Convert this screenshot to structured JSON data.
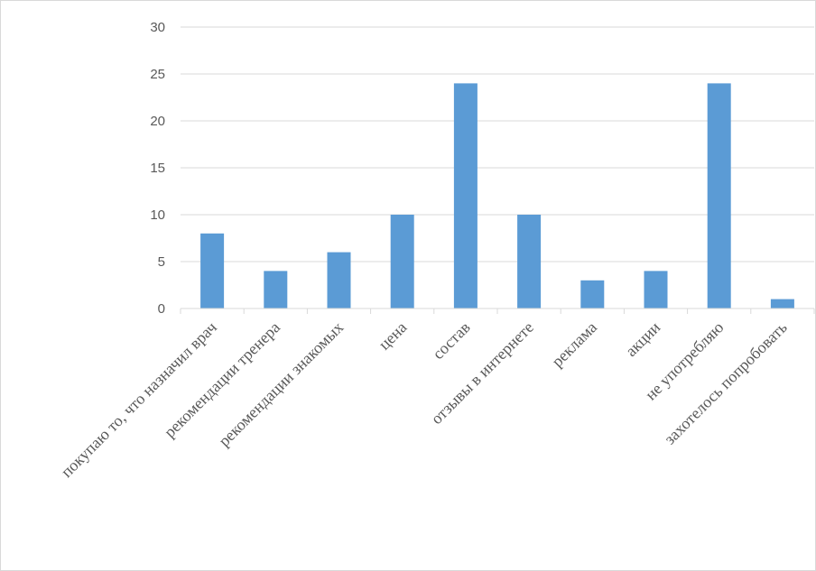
{
  "chart_data": {
    "type": "bar",
    "categories": [
      "покупаю то, что назначил врач",
      "рекомендации тренера",
      "рекомендации знакомых",
      "цена",
      "состав",
      "отзывы в интернете",
      "реклама",
      "акции",
      "не употребляю",
      "захотелось попробовать"
    ],
    "values": [
      8,
      4,
      6,
      10,
      24,
      10,
      3,
      4,
      24,
      1
    ],
    "ylim": [
      0,
      30
    ],
    "yticks": [
      0,
      5,
      10,
      15,
      20,
      25,
      30
    ],
    "grid": true,
    "legend": "none",
    "bar_color": "#5b9bd5",
    "grid_color": "#d9d9d9"
  }
}
